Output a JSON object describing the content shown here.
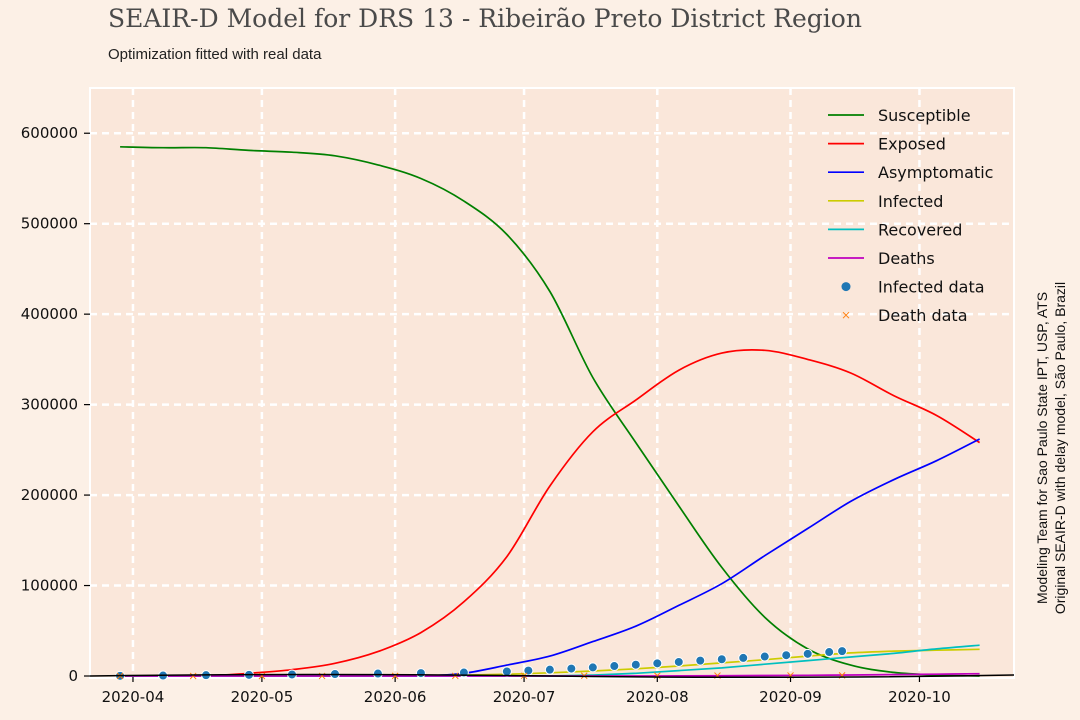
{
  "title": "SEAIR-D Model for DRS 13 - Ribeirão Preto District Region",
  "subtitle": "Optimization fitted with real data",
  "credits": {
    "line1": "Modeling Team for Sao Paulo State IPT, USP, ATS",
    "line2": "Original SEAIR-D with delay model, São Paulo, Brazil"
  },
  "colors": {
    "background": "#fcf0e6",
    "plot_bg": "#fae7da",
    "grid": "#ffffff"
  },
  "chart_data": {
    "type": "line",
    "title": "SEAIR-D Model for DRS 13 - Ribeirão Preto District Region",
    "subtitle": "Optimization fitted with real data",
    "xlabel": "",
    "ylabel": "",
    "ylim": [
      0,
      650000
    ],
    "xlim": [
      "2020-03-22",
      "2020-10-23"
    ],
    "grid": true,
    "legend_position": "top-right",
    "y_ticks": [
      0,
      100000,
      200000,
      300000,
      400000,
      500000,
      600000
    ],
    "x_ticks": [
      "2020-04",
      "2020-05",
      "2020-06",
      "2020-07",
      "2020-08",
      "2020-09",
      "2020-10"
    ],
    "x": [
      "2020-03-29",
      "2020-04-08",
      "2020-04-18",
      "2020-04-28",
      "2020-05-08",
      "2020-05-18",
      "2020-05-28",
      "2020-06-07",
      "2020-06-17",
      "2020-06-27",
      "2020-07-07",
      "2020-07-17",
      "2020-07-27",
      "2020-08-06",
      "2020-08-16",
      "2020-08-26",
      "2020-09-05",
      "2020-09-15",
      "2020-09-25",
      "2020-10-05",
      "2020-10-15"
    ],
    "series": [
      {
        "name": "Susceptible",
        "color": "#008000",
        "style": "line",
        "values": [
          585000,
          584000,
          584000,
          581000,
          579000,
          575000,
          565000,
          550000,
          525000,
          488000,
          425000,
          330000,
          258000,
          188000,
          120000,
          65000,
          30000,
          12000,
          4000,
          1000,
          0
        ]
      },
      {
        "name": "Exposed",
        "color": "#ff0000",
        "style": "line",
        "values": [
          0,
          0,
          0,
          3000,
          7000,
          14000,
          27000,
          48000,
          82000,
          132000,
          210000,
          270000,
          305000,
          338000,
          357000,
          360000,
          350000,
          335000,
          310000,
          288000,
          258000
        ]
      },
      {
        "name": "Asymptomatic",
        "color": "#0000ff",
        "style": "line",
        "values": [
          0,
          0,
          0,
          0,
          0,
          0,
          0,
          0,
          3000,
          12000,
          22000,
          38000,
          55000,
          78000,
          102000,
          133000,
          163000,
          193000,
          217000,
          238000,
          262000
        ]
      },
      {
        "name": "Infected",
        "color": "#cccc00",
        "style": "line",
        "values": [
          0,
          0,
          0,
          0,
          0,
          0,
          0,
          500,
          1000,
          2000,
          3500,
          5500,
          8000,
          11000,
          14500,
          18000,
          22000,
          25500,
          27500,
          28500,
          29500
        ]
      },
      {
        "name": "Recovered",
        "color": "#00bfbf",
        "style": "line",
        "values": [
          0,
          0,
          0,
          0,
          0,
          0,
          0,
          0,
          0,
          0,
          0,
          1000,
          3000,
          6000,
          9000,
          13000,
          17000,
          21000,
          25000,
          30000,
          34000
        ]
      },
      {
        "name": "Deaths",
        "color": "#bf00bf",
        "style": "line",
        "values": [
          0,
          0,
          0,
          0,
          0,
          0,
          0,
          0,
          0,
          0,
          0,
          0,
          0,
          100,
          300,
          500,
          800,
          1100,
          1500,
          2000,
          2500
        ]
      },
      {
        "name": "Infected data",
        "color": "#1f77b4",
        "style": "points",
        "x": [
          "2020-03-29",
          "2020-04-08",
          "2020-04-18",
          "2020-04-28",
          "2020-05-08",
          "2020-05-18",
          "2020-05-28",
          "2020-06-07",
          "2020-06-17",
          "2020-06-27",
          "2020-07-02",
          "2020-07-07",
          "2020-07-12",
          "2020-07-17",
          "2020-07-22",
          "2020-07-27",
          "2020-08-01",
          "2020-08-06",
          "2020-08-11",
          "2020-08-16",
          "2020-08-21",
          "2020-08-26",
          "2020-08-31",
          "2020-09-05",
          "2020-09-10",
          "2020-09-13"
        ],
        "values": [
          200,
          500,
          900,
          1300,
          1700,
          2200,
          2700,
          3200,
          3800,
          5000,
          6000,
          7000,
          8200,
          9500,
          11000,
          12500,
          14000,
          15500,
          17000,
          18500,
          20000,
          21500,
          23000,
          24500,
          26500,
          27500
        ]
      },
      {
        "name": "Death data",
        "color": "#ff7f0e",
        "style": "crosses",
        "x": [
          "2020-03-29",
          "2020-04-15",
          "2020-05-01",
          "2020-05-15",
          "2020-06-01",
          "2020-06-15",
          "2020-07-01",
          "2020-07-15",
          "2020-08-01",
          "2020-08-15",
          "2020-09-01",
          "2020-09-13"
        ],
        "values": [
          0,
          10,
          30,
          60,
          100,
          150,
          220,
          300,
          400,
          500,
          620,
          700
        ]
      }
    ]
  }
}
